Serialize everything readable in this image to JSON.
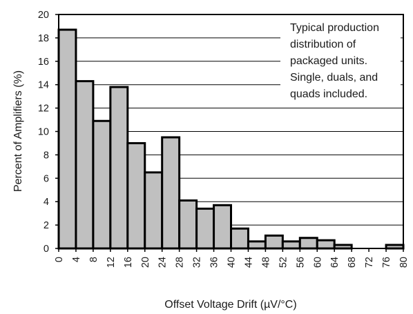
{
  "chart_data": {
    "type": "bar",
    "title": "",
    "xlabel": "Offset Voltage Drift (µV/°C)",
    "ylabel": "Percent of Amplifiers (%)",
    "ylim": [
      0,
      20
    ],
    "xlim": [
      0,
      80
    ],
    "bin_width": 4,
    "y_ticks": [
      "0",
      "2",
      "4",
      "6",
      "8",
      "10",
      "12",
      "14",
      "16",
      "18",
      "20"
    ],
    "x_ticks": [
      "0",
      "4",
      "8",
      "12",
      "16",
      "20",
      "24",
      "28",
      "32",
      "36",
      "40",
      "44",
      "48",
      "52",
      "56",
      "60",
      "64",
      "68",
      "72",
      "76",
      "80"
    ],
    "bins": [
      {
        "start": 0,
        "value": 18.7
      },
      {
        "start": 4,
        "value": 14.3
      },
      {
        "start": 8,
        "value": 10.9
      },
      {
        "start": 12,
        "value": 13.8
      },
      {
        "start": 16,
        "value": 9.0
      },
      {
        "start": 20,
        "value": 6.5
      },
      {
        "start": 24,
        "value": 9.5
      },
      {
        "start": 28,
        "value": 4.1
      },
      {
        "start": 32,
        "value": 3.4
      },
      {
        "start": 36,
        "value": 3.7
      },
      {
        "start": 40,
        "value": 1.7
      },
      {
        "start": 44,
        "value": 0.6
      },
      {
        "start": 48,
        "value": 1.1
      },
      {
        "start": 52,
        "value": 0.6
      },
      {
        "start": 56,
        "value": 0.9
      },
      {
        "start": 60,
        "value": 0.7
      },
      {
        "start": 64,
        "value": 0.3
      },
      {
        "start": 68,
        "value": 0.0
      },
      {
        "start": 72,
        "value": 0.0
      },
      {
        "start": 76,
        "value": 0.3
      }
    ],
    "grid": "horizontal",
    "bar_color": "#c0c0c0",
    "edge_color": "#000000",
    "annotation": [
      "Typical production",
      "distribution of",
      "packaged units.",
      "Single, duals, and",
      "quads included."
    ]
  }
}
